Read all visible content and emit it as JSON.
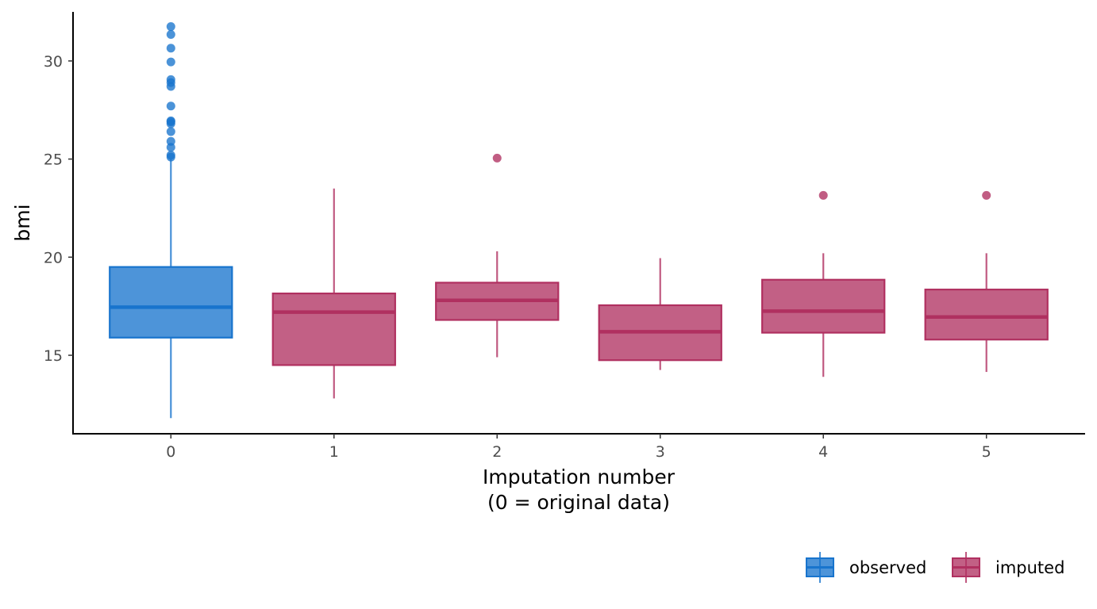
{
  "chart_data": {
    "type": "boxplot",
    "title": "",
    "xlabel_lines": [
      "Imputation number",
      "(0 = original data)"
    ],
    "ylabel": "bmi",
    "xlim": [
      -0.6,
      5.6
    ],
    "ylim": [
      11.0,
      32.5
    ],
    "x_ticks": [
      0,
      1,
      2,
      3,
      4,
      5
    ],
    "y_ticks": [
      15,
      20,
      25,
      30
    ],
    "grid": false,
    "legend_position": "bottom-right",
    "colors": {
      "observed": "#1874CD",
      "imputed": "#B03060"
    },
    "legend": [
      {
        "key": "observed",
        "label": "observed"
      },
      {
        "key": "imputed",
        "label": "imputed"
      }
    ],
    "boxes": [
      {
        "x": 0,
        "group": "observed",
        "whisker_low": 11.8,
        "q1": 15.9,
        "median": 17.45,
        "q3": 19.5,
        "whisker_high": 25.0,
        "outliers": [
          25.1,
          25.2,
          25.6,
          25.9,
          26.4,
          26.8,
          26.9,
          26.95,
          27.7,
          28.7,
          28.9,
          29.05,
          29.95,
          30.65,
          31.35,
          31.75
        ]
      },
      {
        "x": 1,
        "group": "imputed",
        "whisker_low": 12.8,
        "q1": 14.5,
        "median": 17.2,
        "q3": 18.15,
        "whisker_high": 23.5,
        "outliers": []
      },
      {
        "x": 2,
        "group": "imputed",
        "whisker_low": 14.9,
        "q1": 16.8,
        "median": 17.8,
        "q3": 18.7,
        "whisker_high": 20.3,
        "outliers": [
          25.05
        ]
      },
      {
        "x": 3,
        "group": "imputed",
        "whisker_low": 14.25,
        "q1": 14.75,
        "median": 16.2,
        "q3": 17.55,
        "whisker_high": 19.95,
        "outliers": []
      },
      {
        "x": 4,
        "group": "imputed",
        "whisker_low": 13.9,
        "q1": 16.15,
        "median": 17.25,
        "q3": 18.85,
        "whisker_high": 20.2,
        "outliers": [
          23.15
        ]
      },
      {
        "x": 5,
        "group": "imputed",
        "whisker_low": 14.15,
        "q1": 15.8,
        "median": 16.95,
        "q3": 18.35,
        "whisker_high": 20.2,
        "outliers": [
          23.15
        ]
      }
    ]
  }
}
